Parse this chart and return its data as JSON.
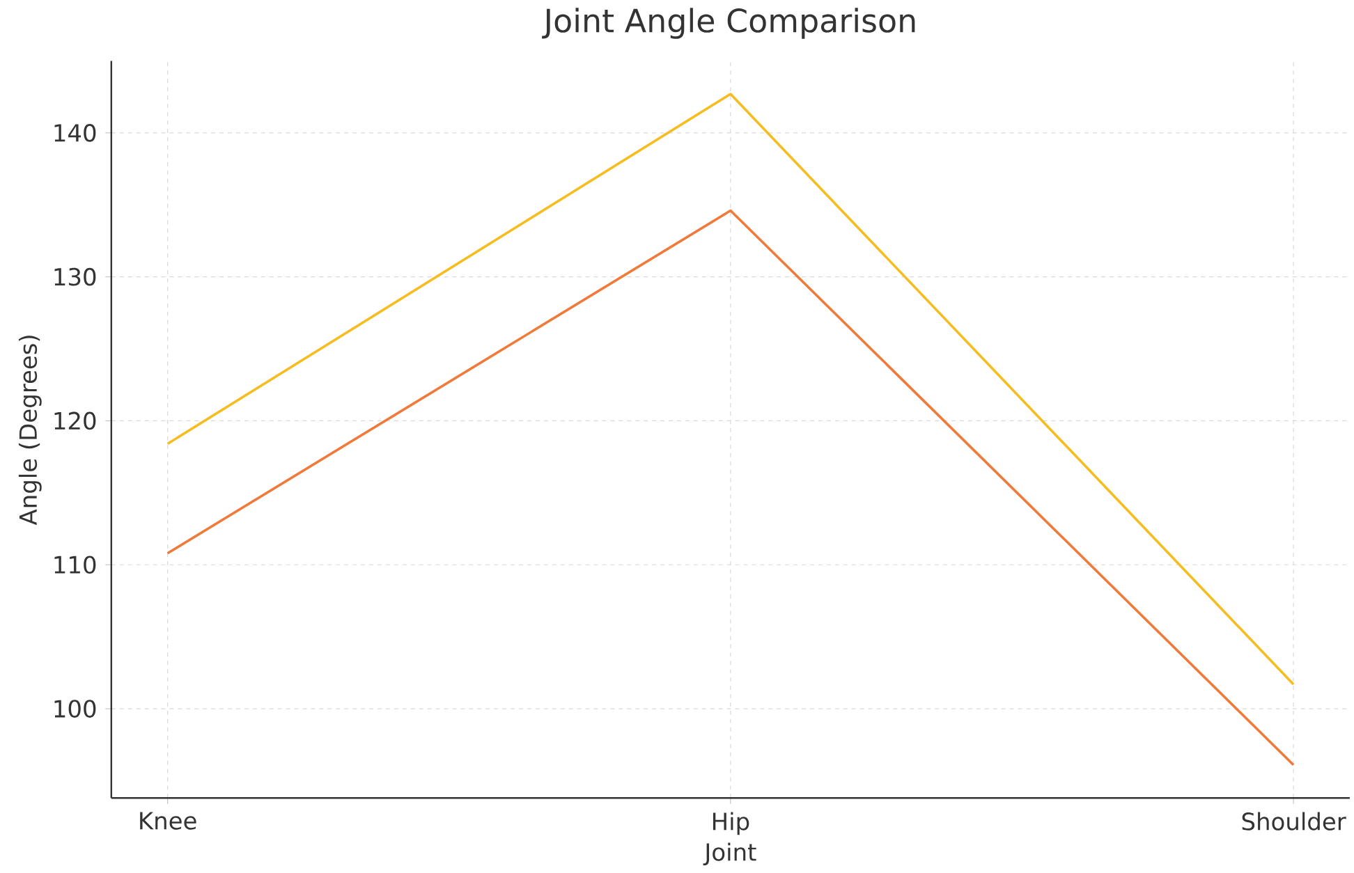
{
  "chart_data": {
    "type": "line",
    "title": "Joint Angle Comparison",
    "xlabel": "Joint",
    "ylabel": "Angle (Degrees)",
    "categories": [
      "Knee",
      "Hip",
      "Shoulder"
    ],
    "series": [
      {
        "color": "#f5bd1f",
        "values": [
          118.4,
          142.7,
          101.7
        ]
      },
      {
        "color": "#f07a3a",
        "values": [
          110.8,
          134.6,
          96.1
        ]
      }
    ],
    "ylim": [
      93.8,
      145
    ],
    "yticks": [
      100,
      110,
      120,
      130,
      140
    ],
    "grid": true,
    "marker": "none",
    "line_style": "solid"
  }
}
